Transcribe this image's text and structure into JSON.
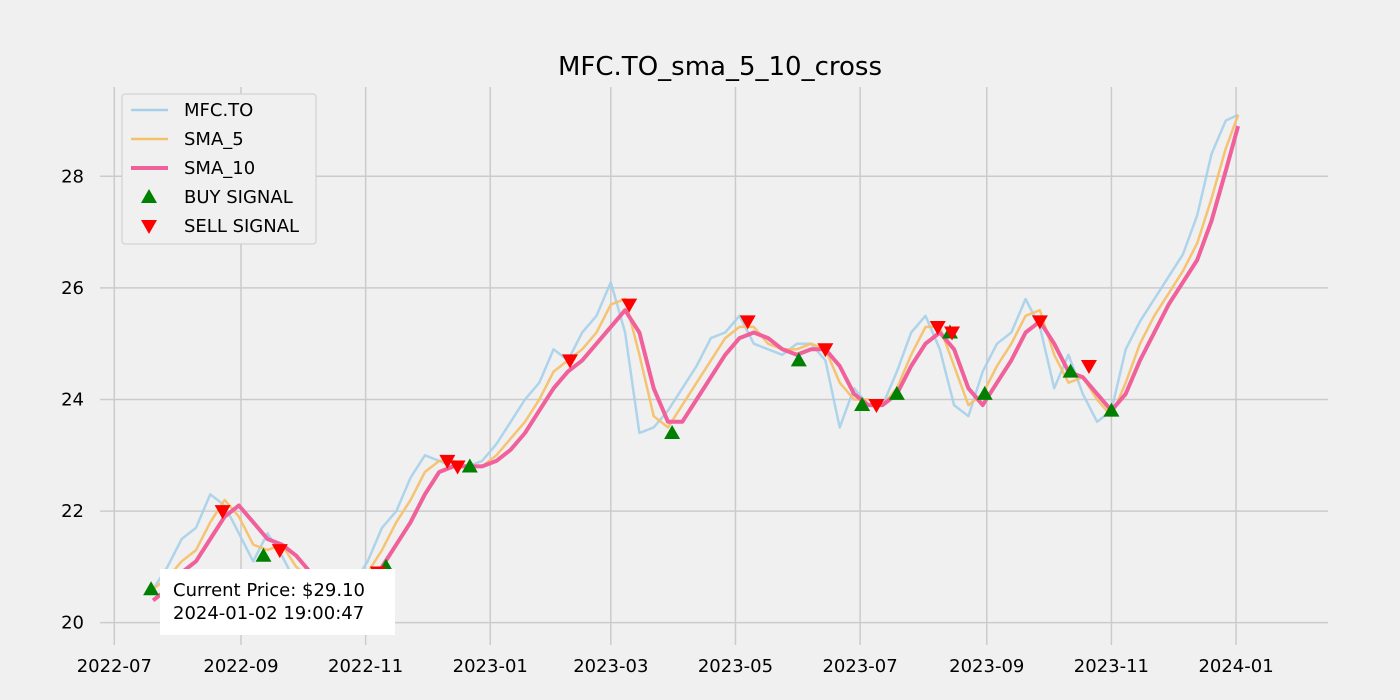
{
  "chart_data": {
    "type": "line",
    "title": "MFC.TO_sma_5_10_cross",
    "xlabel": "",
    "ylabel": "",
    "x_range": [
      "2022-06-24",
      "2024-02-15"
    ],
    "ylim": [
      19.6,
      29.6
    ],
    "grid": true,
    "legend_position": "top-left",
    "x_ticks": [
      "2022-07",
      "2022-09",
      "2022-11",
      "2023-01",
      "2023-03",
      "2023-05",
      "2023-07",
      "2023-09",
      "2023-11",
      "2024-01"
    ],
    "y_ticks": [
      20,
      22,
      24,
      26,
      28
    ],
    "x": [
      "2022-07-20",
      "2022-07-27",
      "2022-08-03",
      "2022-08-10",
      "2022-08-17",
      "2022-08-24",
      "2022-08-31",
      "2022-09-07",
      "2022-09-14",
      "2022-09-21",
      "2022-09-28",
      "2022-10-05",
      "2022-10-12",
      "2022-10-19",
      "2022-10-26",
      "2022-11-02",
      "2022-11-09",
      "2022-11-16",
      "2022-11-23",
      "2022-11-30",
      "2022-12-07",
      "2022-12-14",
      "2022-12-21",
      "2022-12-28",
      "2023-01-04",
      "2023-01-11",
      "2023-01-18",
      "2023-01-25",
      "2023-02-01",
      "2023-02-08",
      "2023-02-15",
      "2023-02-22",
      "2023-03-01",
      "2023-03-08",
      "2023-03-15",
      "2023-03-22",
      "2023-03-29",
      "2023-04-05",
      "2023-04-12",
      "2023-04-19",
      "2023-04-26",
      "2023-05-03",
      "2023-05-10",
      "2023-05-17",
      "2023-05-24",
      "2023-05-31",
      "2023-06-07",
      "2023-06-14",
      "2023-06-21",
      "2023-06-28",
      "2023-07-05",
      "2023-07-12",
      "2023-07-19",
      "2023-07-26",
      "2023-08-02",
      "2023-08-09",
      "2023-08-16",
      "2023-08-23",
      "2023-08-30",
      "2023-09-06",
      "2023-09-13",
      "2023-09-20",
      "2023-09-27",
      "2023-10-04",
      "2023-10-11",
      "2023-10-18",
      "2023-10-25",
      "2023-11-01",
      "2023-11-08",
      "2023-11-15",
      "2023-11-22",
      "2023-11-29",
      "2023-12-06",
      "2023-12-13",
      "2023-12-20",
      "2023-12-27",
      "2024-01-02"
    ],
    "series": [
      {
        "name": "MFC.TO",
        "color": "#a6d0ea",
        "values": [
          20.6,
          21.0,
          21.5,
          21.7,
          22.3,
          22.1,
          21.6,
          21.1,
          21.6,
          21.2,
          20.7,
          20.9,
          20.4,
          20.5,
          20.7,
          21.1,
          21.7,
          22.0,
          22.6,
          23.0,
          22.9,
          22.8,
          22.8,
          22.9,
          23.2,
          23.6,
          24.0,
          24.3,
          24.9,
          24.7,
          25.2,
          25.5,
          26.1,
          25.2,
          23.4,
          23.5,
          23.8,
          24.2,
          24.6,
          25.1,
          25.2,
          25.5,
          25.0,
          24.9,
          24.8,
          25.0,
          25.0,
          24.7,
          23.5,
          24.2,
          23.9,
          23.9,
          24.5,
          25.2,
          25.5,
          24.9,
          23.9,
          23.7,
          24.5,
          25.0,
          25.2,
          25.8,
          25.3,
          24.2,
          24.8,
          24.1,
          23.6,
          23.8,
          24.9,
          25.4,
          25.8,
          26.2,
          26.6,
          27.3,
          28.4,
          29.0,
          29.1
        ]
      },
      {
        "name": "SMA_5",
        "color": "#f5c06a",
        "values": [
          20.6,
          20.8,
          21.1,
          21.3,
          21.8,
          22.2,
          21.9,
          21.4,
          21.3,
          21.4,
          21.0,
          20.8,
          20.6,
          20.5,
          20.6,
          20.9,
          21.3,
          21.8,
          22.2,
          22.7,
          22.9,
          22.9,
          22.8,
          22.8,
          23.0,
          23.3,
          23.6,
          24.0,
          24.5,
          24.7,
          24.9,
          25.2,
          25.7,
          25.8,
          24.8,
          23.7,
          23.5,
          23.9,
          24.3,
          24.7,
          25.1,
          25.3,
          25.3,
          25.0,
          24.9,
          24.9,
          25.0,
          24.9,
          24.3,
          24.0,
          24.0,
          23.9,
          24.2,
          24.8,
          25.3,
          25.3,
          24.6,
          23.9,
          24.1,
          24.6,
          25.0,
          25.5,
          25.6,
          24.8,
          24.3,
          24.4,
          24.0,
          23.7,
          24.3,
          25.0,
          25.5,
          25.9,
          26.3,
          26.8,
          27.6,
          28.5,
          29.1
        ]
      },
      {
        "name": "SMA_10",
        "color": "#f0609a",
        "values": [
          20.4,
          20.6,
          20.9,
          21.1,
          21.5,
          21.9,
          22.1,
          21.8,
          21.5,
          21.4,
          21.2,
          20.9,
          20.7,
          20.6,
          20.5,
          20.7,
          21.0,
          21.4,
          21.8,
          22.3,
          22.7,
          22.8,
          22.8,
          22.8,
          22.9,
          23.1,
          23.4,
          23.8,
          24.2,
          24.5,
          24.7,
          25.0,
          25.3,
          25.6,
          25.2,
          24.2,
          23.6,
          23.6,
          24.0,
          24.4,
          24.8,
          25.1,
          25.2,
          25.1,
          24.9,
          24.8,
          24.9,
          24.9,
          24.6,
          24.1,
          23.9,
          23.9,
          24.1,
          24.6,
          25.0,
          25.2,
          24.9,
          24.2,
          23.9,
          24.3,
          24.7,
          25.2,
          25.4,
          25.0,
          24.5,
          24.4,
          24.1,
          23.8,
          24.1,
          24.7,
          25.2,
          25.7,
          26.1,
          26.5,
          27.2,
          28.1,
          28.9
        ]
      }
    ],
    "buy_signal": {
      "name": "BUY SIGNAL",
      "color": "#008000",
      "x": [
        "2022-07-19",
        "2022-09-12",
        "2022-11-11",
        "2022-12-22",
        "2023-03-31",
        "2023-06-01",
        "2023-07-02",
        "2023-07-19",
        "2023-08-14",
        "2023-08-31",
        "2023-10-12",
        "2023-11-01"
      ],
      "values": [
        20.6,
        21.2,
        21.0,
        22.8,
        23.4,
        24.7,
        23.9,
        24.1,
        25.2,
        24.1,
        24.5,
        23.8
      ]
    },
    "sell_signal": {
      "name": "SELL SIGNAL",
      "color": "#ff0000",
      "x": [
        "2022-08-23",
        "2022-09-20",
        "2022-11-07",
        "2022-12-11",
        "2022-12-16",
        "2023-02-09",
        "2023-03-10",
        "2023-05-07",
        "2023-06-14",
        "2023-07-09",
        "2023-08-08",
        "2023-08-15",
        "2023-09-27",
        "2023-10-21"
      ],
      "values": [
        22.0,
        21.3,
        20.9,
        22.9,
        22.8,
        24.7,
        25.7,
        25.4,
        24.9,
        23.9,
        25.3,
        25.2,
        25.4,
        24.6
      ]
    },
    "annotation": {
      "line1": "Current Price: $29.10",
      "line2": "2024-01-02 19:00:47"
    }
  }
}
